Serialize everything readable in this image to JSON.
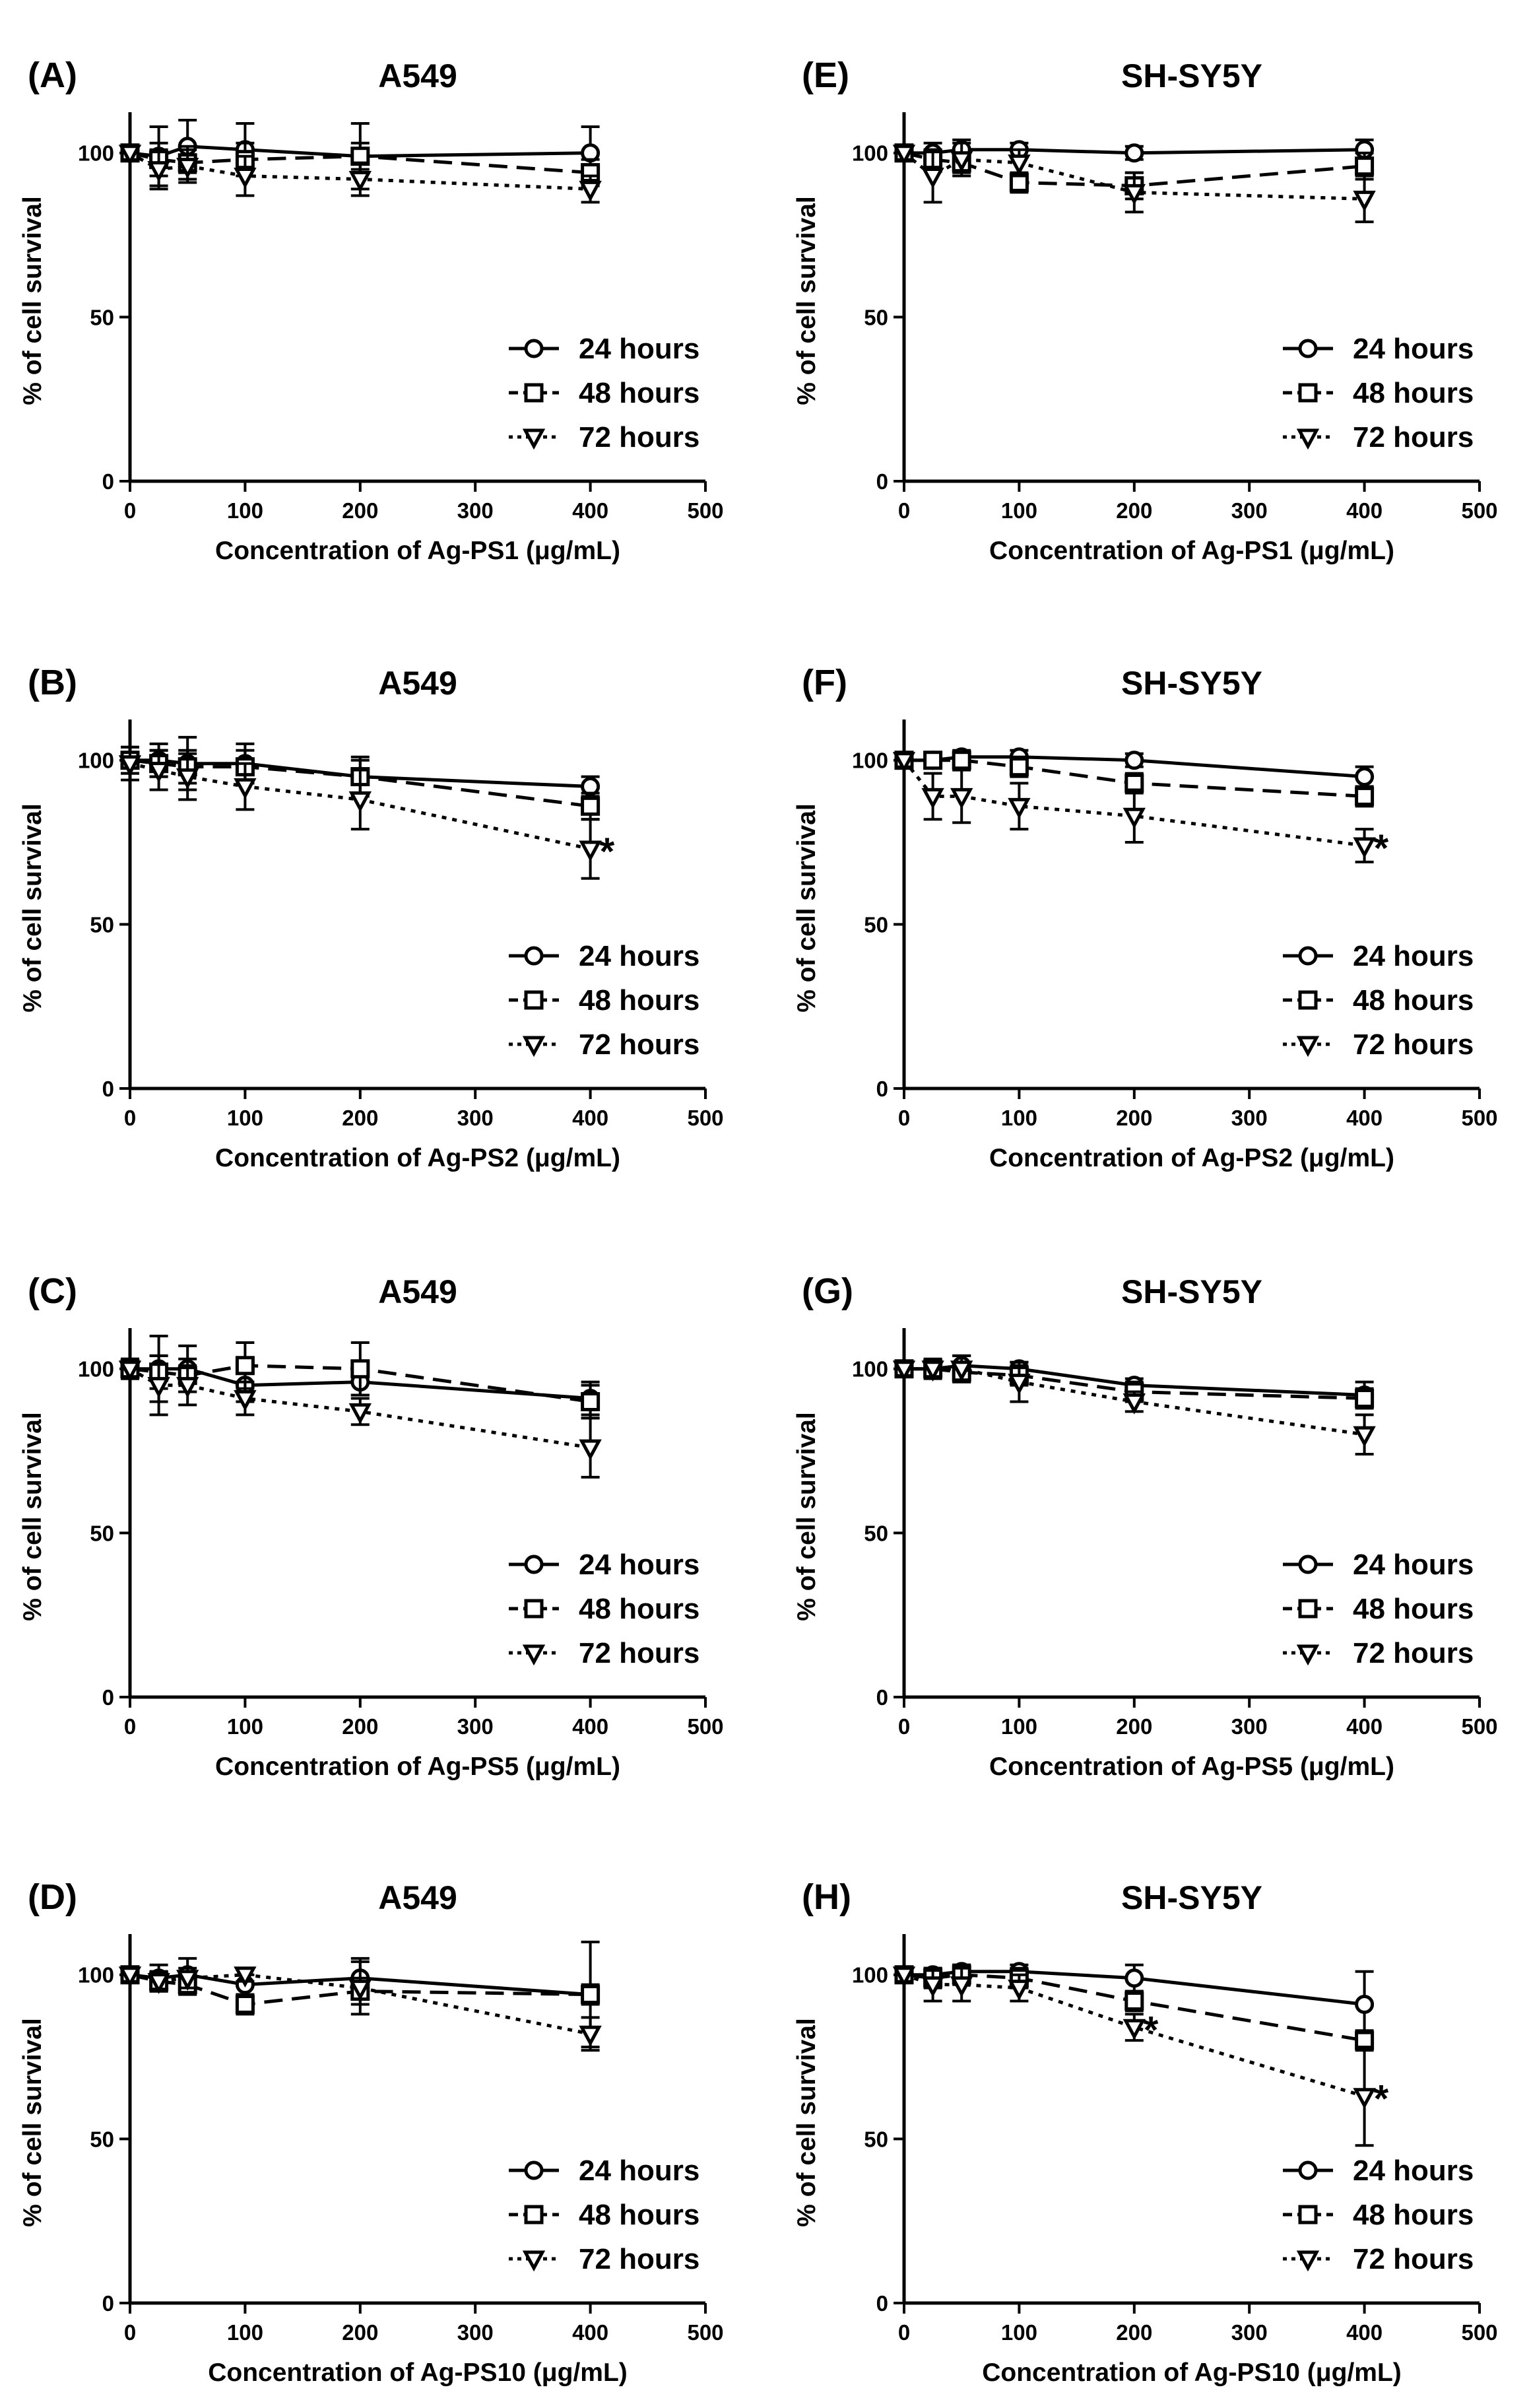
{
  "figure": {
    "description_free": true
  },
  "series_names": [
    "24 hours",
    "48 hours",
    "72 hours"
  ],
  "chart_data": [
    {
      "panel_label": "(A)",
      "title": "A549",
      "type": "line",
      "xlabel": "Concentration of Ag-PS1 (μg/mL)",
      "ylabel": "% of cell survival",
      "xlim": [
        0,
        500
      ],
      "ylim": [
        0,
        110
      ],
      "xticks": [
        0,
        100,
        200,
        300,
        400,
        500
      ],
      "yticks": [
        0,
        50,
        100
      ],
      "legend": "bottom-right",
      "annotations": [],
      "series": [
        {
          "name": "24 hours",
          "x": [
            0,
            25,
            50,
            100,
            200,
            400
          ],
          "y": [
            100,
            99,
            102,
            101,
            99,
            100
          ],
          "err": [
            2,
            9,
            8,
            8,
            10,
            8
          ]
        },
        {
          "name": "48 hours",
          "x": [
            0,
            25,
            50,
            100,
            200,
            400
          ],
          "y": [
            100,
            98,
            97,
            98,
            99,
            94
          ],
          "err": [
            2,
            5,
            5,
            5,
            4,
            4
          ]
        },
        {
          "name": "72 hours",
          "x": [
            0,
            25,
            50,
            100,
            200,
            400
          ],
          "y": [
            100,
            95,
            96,
            93,
            92,
            89
          ],
          "err": [
            2,
            6,
            5,
            6,
            5,
            4
          ]
        }
      ]
    },
    {
      "panel_label": "(E)",
      "title": "SH-SY5Y",
      "type": "line",
      "xlabel": "Concentration of Ag-PS1 (μg/mL)",
      "ylabel": "% of cell survival",
      "xlim": [
        0,
        500
      ],
      "ylim": [
        0,
        110
      ],
      "xticks": [
        0,
        100,
        200,
        300,
        400,
        500
      ],
      "yticks": [
        0,
        50,
        100
      ],
      "legend": "bottom-right",
      "annotations": [],
      "series": [
        {
          "name": "24 hours",
          "x": [
            0,
            25,
            50,
            100,
            200,
            400
          ],
          "y": [
            100,
            100,
            101,
            101,
            100,
            101
          ],
          "err": [
            2,
            3,
            3,
            2,
            2,
            3
          ]
        },
        {
          "name": "48 hours",
          "x": [
            0,
            25,
            50,
            100,
            200,
            400
          ],
          "y": [
            100,
            98,
            97,
            91,
            90,
            96
          ],
          "err": [
            2,
            3,
            3,
            3,
            4,
            4
          ]
        },
        {
          "name": "72 hours",
          "x": [
            0,
            25,
            50,
            100,
            200,
            400
          ],
          "y": [
            100,
            93,
            98,
            97,
            88,
            86
          ],
          "err": [
            2,
            8,
            5,
            4,
            6,
            7
          ]
        }
      ]
    },
    {
      "panel_label": "(B)",
      "title": "A549",
      "type": "line",
      "xlabel": "Concentration of Ag-PS2 (μg/mL)",
      "ylabel": "% of cell survival",
      "xlim": [
        0,
        500
      ],
      "ylim": [
        0,
        110
      ],
      "xticks": [
        0,
        100,
        200,
        300,
        400,
        500
      ],
      "yticks": [
        0,
        50,
        100
      ],
      "legend": "bottom-right",
      "annotations": [
        {
          "text": "*",
          "x": 400,
          "y": 73
        }
      ],
      "series": [
        {
          "name": "24 hours",
          "x": [
            0,
            25,
            50,
            100,
            200,
            400
          ],
          "y": [
            100,
            100,
            99,
            99,
            95,
            92
          ],
          "err": [
            4,
            5,
            8,
            6,
            6,
            3
          ]
        },
        {
          "name": "48 hours",
          "x": [
            0,
            25,
            50,
            100,
            200,
            400
          ],
          "y": [
            100,
            99,
            98,
            98,
            95,
            86
          ],
          "err": [
            4,
            4,
            5,
            5,
            5,
            4
          ]
        },
        {
          "name": "72 hours",
          "x": [
            0,
            25,
            50,
            100,
            200,
            400
          ],
          "y": [
            99,
            97,
            95,
            92,
            88,
            73
          ],
          "err": [
            5,
            6,
            7,
            7,
            9,
            9
          ]
        }
      ]
    },
    {
      "panel_label": "(F)",
      "title": "SH-SY5Y",
      "type": "line",
      "xlabel": "Concentration of Ag-PS2 (μg/mL)",
      "ylabel": "% of cell survival",
      "xlim": [
        0,
        500
      ],
      "ylim": [
        0,
        110
      ],
      "xticks": [
        0,
        100,
        200,
        300,
        400,
        500
      ],
      "yticks": [
        0,
        50,
        100
      ],
      "legend": "bottom-right",
      "annotations": [
        {
          "text": "*",
          "x": 400,
          "y": 74
        }
      ],
      "series": [
        {
          "name": "24 hours",
          "x": [
            0,
            25,
            50,
            100,
            200,
            400
          ],
          "y": [
            100,
            100,
            101,
            101,
            100,
            95
          ],
          "err": [
            2,
            2,
            2,
            2,
            2,
            3
          ]
        },
        {
          "name": "48 hours",
          "x": [
            0,
            25,
            50,
            100,
            200,
            400
          ],
          "y": [
            100,
            100,
            100,
            98,
            93,
            89
          ],
          "err": [
            2,
            2,
            2,
            3,
            3,
            3
          ]
        },
        {
          "name": "72 hours",
          "x": [
            0,
            25,
            50,
            100,
            200,
            400
          ],
          "y": [
            100,
            89,
            89,
            86,
            83,
            74
          ],
          "err": [
            2,
            7,
            8,
            7,
            8,
            5
          ]
        }
      ]
    },
    {
      "panel_label": "(C)",
      "title": "A549",
      "type": "line",
      "xlabel": "Concentration of Ag-PS5 (μg/mL)",
      "ylabel": "% of cell survival",
      "xlim": [
        0,
        500
      ],
      "ylim": [
        0,
        110
      ],
      "xticks": [
        0,
        100,
        200,
        300,
        400,
        500
      ],
      "yticks": [
        0,
        50,
        100
      ],
      "legend": "bottom-right",
      "annotations": [],
      "series": [
        {
          "name": "24 hours",
          "x": [
            0,
            25,
            50,
            100,
            200,
            400
          ],
          "y": [
            100,
            100,
            100,
            95,
            96,
            91
          ],
          "err": [
            2,
            10,
            7,
            5,
            4,
            5
          ]
        },
        {
          "name": "48 hours",
          "x": [
            0,
            25,
            50,
            100,
            200,
            400
          ],
          "y": [
            100,
            99,
            98,
            101,
            100,
            90
          ],
          "err": [
            3,
            5,
            5,
            7,
            8,
            5
          ]
        },
        {
          "name": "72 hours",
          "x": [
            0,
            25,
            50,
            100,
            200,
            400
          ],
          "y": [
            100,
            95,
            95,
            91,
            87,
            76
          ],
          "err": [
            3,
            9,
            6,
            5,
            4,
            9
          ]
        }
      ]
    },
    {
      "panel_label": "(G)",
      "title": "SH-SY5Y",
      "type": "line",
      "xlabel": "Concentration of Ag-PS5 (μg/mL)",
      "ylabel": "% of cell survival",
      "xlim": [
        0,
        500
      ],
      "ylim": [
        0,
        110
      ],
      "xticks": [
        0,
        100,
        200,
        300,
        400,
        500
      ],
      "yticks": [
        0,
        50,
        100
      ],
      "legend": "bottom-right",
      "annotations": [],
      "series": [
        {
          "name": "24 hours",
          "x": [
            0,
            25,
            50,
            100,
            200,
            400
          ],
          "y": [
            100,
            100,
            101,
            100,
            95,
            92
          ],
          "err": [
            2,
            2,
            3,
            2,
            2,
            4
          ]
        },
        {
          "name": "48 hours",
          "x": [
            0,
            25,
            50,
            100,
            200,
            400
          ],
          "y": [
            100,
            100,
            99,
            98,
            93,
            91
          ],
          "err": [
            2,
            2,
            3,
            3,
            3,
            3
          ]
        },
        {
          "name": "72 hours",
          "x": [
            0,
            25,
            50,
            100,
            200,
            400
          ],
          "y": [
            100,
            100,
            100,
            96,
            90,
            80
          ],
          "err": [
            2,
            3,
            4,
            6,
            3,
            6
          ]
        }
      ]
    },
    {
      "panel_label": "(D)",
      "title": "A549",
      "type": "line",
      "xlabel": "Concentration of Ag-PS10 (μg/mL)",
      "ylabel": "% of cell survival",
      "xlim": [
        0,
        500
      ],
      "ylim": [
        0,
        110
      ],
      "xticks": [
        0,
        100,
        200,
        300,
        400,
        500
      ],
      "yticks": [
        0,
        50,
        100
      ],
      "legend": "bottom-right",
      "annotations": [],
      "series": [
        {
          "name": "24 hours",
          "x": [
            0,
            25,
            50,
            100,
            200,
            400
          ],
          "y": [
            100,
            99,
            100,
            97,
            99,
            94
          ],
          "err": [
            2,
            4,
            5,
            3,
            6,
            16
          ]
        },
        {
          "name": "48 hours",
          "x": [
            0,
            25,
            50,
            100,
            200,
            400
          ],
          "y": [
            100,
            98,
            97,
            91,
            95,
            94
          ],
          "err": [
            2,
            3,
            3,
            3,
            4,
            3
          ]
        },
        {
          "name": "72 hours",
          "x": [
            0,
            25,
            50,
            100,
            200,
            400
          ],
          "y": [
            100,
            98,
            99,
            100,
            96,
            82
          ],
          "err": [
            2,
            3,
            3,
            2,
            8,
            5
          ]
        }
      ]
    },
    {
      "panel_label": "(H)",
      "title": "SH-SY5Y",
      "type": "line",
      "xlabel": "Concentration of Ag-PS10 (μg/mL)",
      "ylabel": "% of cell survival",
      "xlim": [
        0,
        500
      ],
      "ylim": [
        0,
        110
      ],
      "xticks": [
        0,
        100,
        200,
        300,
        400,
        500
      ],
      "yticks": [
        0,
        50,
        100
      ],
      "legend": "bottom-right",
      "annotations": [
        {
          "text": "*",
          "x": 200,
          "y": 84
        },
        {
          "text": "*",
          "x": 400,
          "y": 63
        }
      ],
      "series": [
        {
          "name": "24 hours",
          "x": [
            0,
            25,
            50,
            100,
            200,
            400
          ],
          "y": [
            100,
            100,
            101,
            101,
            99,
            91
          ],
          "err": [
            2,
            2,
            2,
            2,
            4,
            10
          ]
        },
        {
          "name": "48 hours",
          "x": [
            0,
            25,
            50,
            100,
            200,
            400
          ],
          "y": [
            100,
            99,
            100,
            99,
            92,
            80
          ],
          "err": [
            2,
            3,
            3,
            3,
            3,
            3
          ]
        },
        {
          "name": "72 hours",
          "x": [
            0,
            25,
            50,
            100,
            200,
            400
          ],
          "y": [
            100,
            97,
            97,
            96,
            84,
            63
          ],
          "err": [
            2,
            5,
            5,
            4,
            4,
            15
          ]
        }
      ]
    }
  ]
}
